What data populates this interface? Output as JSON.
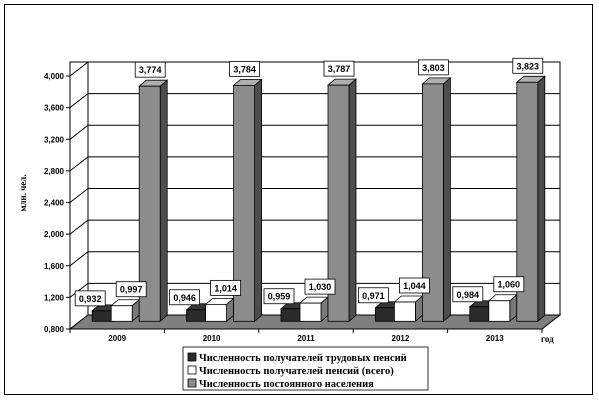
{
  "chart_data": {
    "type": "bar",
    "categories": [
      "2009",
      "2010",
      "2011",
      "2012",
      "2013"
    ],
    "series": [
      {
        "name": "Численность получателей трудовых пенсий",
        "values": [
          0.932,
          0.946,
          0.959,
          0.971,
          0.984
        ],
        "labels": [
          "0,932",
          "0,946",
          "0,959",
          "0,971",
          "0,984"
        ],
        "color": "#2b2b2b"
      },
      {
        "name": "Численность получателей  пенсий (всего)",
        "values": [
          0.997,
          1.014,
          1.03,
          1.044,
          1.06
        ],
        "labels": [
          "0,997",
          "1,014",
          "1,030",
          "1,044",
          "1,060"
        ],
        "color": "#ffffff"
      },
      {
        "name": "Численность постоянного  населения",
        "values": [
          3.774,
          3.784,
          3.787,
          3.803,
          3.823
        ],
        "labels": [
          "3,774",
          "3,784",
          "3,787",
          "3,803",
          "3,823"
        ],
        "color": "#8c8c8c"
      }
    ],
    "ylabel": "млн. чел.",
    "xlabel": "год",
    "ylim": [
      0.8,
      4.0
    ],
    "yticks": [
      0.8,
      1.2,
      1.6,
      2.0,
      2.4,
      2.8,
      3.2,
      3.6,
      4.0
    ],
    "ytick_labels": [
      "0,800",
      "1,200",
      "1,600",
      "2,000",
      "2,400",
      "2,800",
      "3,200",
      "3,600",
      "4,000"
    ],
    "grid": true,
    "legend": "bottom",
    "wall_color": "#ffffff",
    "floor_color": "#7f7f7f"
  }
}
